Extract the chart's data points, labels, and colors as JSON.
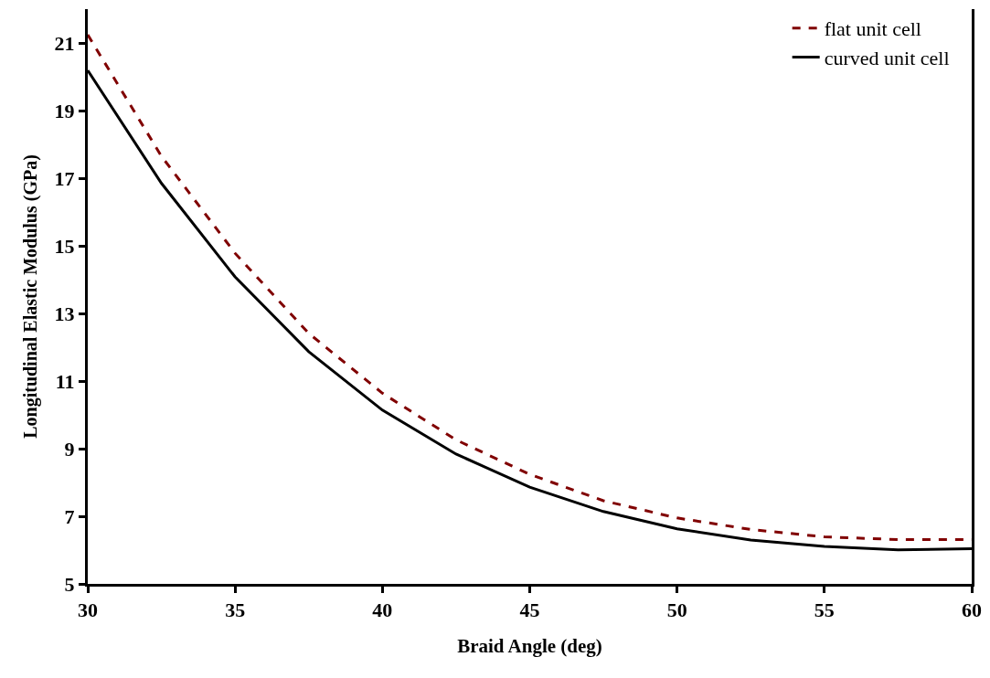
{
  "chart_data": {
    "type": "line",
    "xlabel": "Braid Angle (deg)",
    "ylabel": "Longitudinal Elastic Modulus (GPa)",
    "x": [
      30,
      32.5,
      35,
      37.5,
      40,
      42.5,
      45,
      47.5,
      50,
      52.5,
      55,
      57.5,
      60
    ],
    "series": [
      {
        "name": "flat unit cell",
        "color": "#800000",
        "line_style": "dashed",
        "values": [
          21.24,
          17.65,
          14.78,
          12.41,
          10.64,
          9.26,
          8.24,
          7.46,
          6.95,
          6.61,
          6.39,
          6.31,
          6.31
        ]
      },
      {
        "name": "curved unit cell",
        "color": "#000000",
        "line_style": "solid",
        "values": [
          20.19,
          16.85,
          14.08,
          11.87,
          10.14,
          8.84,
          7.86,
          7.14,
          6.63,
          6.3,
          6.11,
          6.01,
          6.04
        ]
      }
    ],
    "xlim": [
      30,
      60
    ],
    "xticks": [
      30,
      35,
      40,
      45,
      50,
      55,
      60
    ],
    "ylim": [
      5,
      22
    ],
    "yticks": [
      5,
      7,
      9,
      11,
      13,
      15,
      17,
      19,
      21
    ],
    "grid": false,
    "legend": "top right",
    "marker": "none"
  }
}
